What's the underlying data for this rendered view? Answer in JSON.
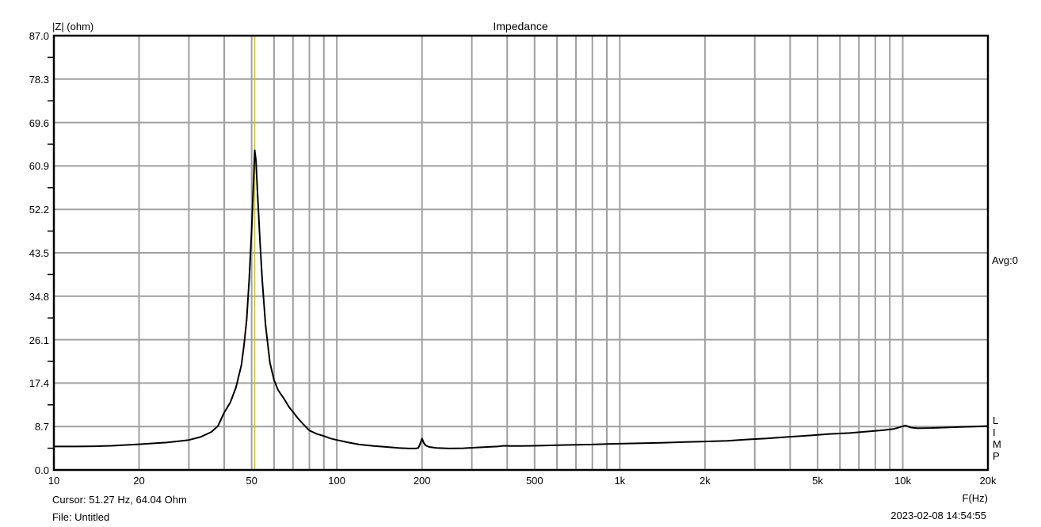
{
  "title": "Impedance",
  "y_axis_label": "|Z| (ohm)",
  "x_axis_label": "F(Hz)",
  "avg_label": "Avg:0",
  "program_letters": [
    "L",
    "I",
    "M",
    "P"
  ],
  "status": {
    "cursor": "Cursor: 51.27 Hz, 64.04 Ohm",
    "file": "File: Untitled",
    "datetime": "2023-02-08 14:54:55"
  },
  "colors": {
    "background": "#ffffff",
    "grid": "#a0a0a0",
    "axis": "#000000",
    "curve": "#000000",
    "cursor_line": "#c8c800",
    "text": "#000000"
  },
  "chart_data": {
    "type": "line",
    "title": "Impedance",
    "xlabel": "F(Hz)",
    "ylabel": "|Z| (ohm)",
    "x_scale": "log",
    "xlim": [
      10,
      20000
    ],
    "ylim": [
      0,
      87
    ],
    "grid": true,
    "legend_position": "none",
    "y_ticks": [
      0.0,
      8.7,
      17.4,
      26.1,
      34.8,
      43.5,
      52.2,
      60.9,
      69.6,
      78.3,
      87.0
    ],
    "y_tick_labels": [
      "0.0",
      "8.7",
      "17.4",
      "26.1",
      "34.8",
      "43.5",
      "52.2",
      "60.9",
      "69.6",
      "78.3",
      "87.0"
    ],
    "y_minor_ticks": [
      4.35,
      13.05,
      21.75,
      30.45,
      39.15,
      47.85,
      56.55,
      65.25,
      73.95,
      82.65
    ],
    "x_ticks": [
      10,
      20,
      50,
      100,
      200,
      500,
      1000,
      2000,
      5000,
      10000,
      20000
    ],
    "x_tick_labels": [
      "10",
      "20",
      "50",
      "100",
      "200",
      "500",
      "1k",
      "2k",
      "5k",
      "10k",
      "20k"
    ],
    "x_gridlines": [
      20,
      30,
      40,
      50,
      60,
      70,
      80,
      90,
      100,
      200,
      300,
      400,
      500,
      600,
      700,
      800,
      900,
      1000,
      2000,
      3000,
      4000,
      5000,
      6000,
      7000,
      8000,
      9000,
      10000
    ],
    "cursor": {
      "freq_hz": 51.27,
      "ohm": 64.04
    },
    "series": [
      {
        "name": "impedance-magnitude",
        "points": [
          [
            10,
            4.7
          ],
          [
            12,
            4.7
          ],
          [
            14,
            4.75
          ],
          [
            16,
            4.85
          ],
          [
            18,
            5.0
          ],
          [
            20,
            5.15
          ],
          [
            22,
            5.3
          ],
          [
            25,
            5.5
          ],
          [
            28,
            5.8
          ],
          [
            30,
            6.0
          ],
          [
            33,
            6.6
          ],
          [
            36,
            7.6
          ],
          [
            38,
            8.8
          ],
          [
            40,
            11.5
          ],
          [
            42,
            13.5
          ],
          [
            44,
            16.5
          ],
          [
            46,
            21.0
          ],
          [
            47,
            25.0
          ],
          [
            48,
            30.0
          ],
          [
            49,
            38.0
          ],
          [
            50,
            48.0
          ],
          [
            50.8,
            58.0
          ],
          [
            51.27,
            64.04
          ],
          [
            51.8,
            62.0
          ],
          [
            52.5,
            55.0
          ],
          [
            53.5,
            46.0
          ],
          [
            54.5,
            38.0
          ],
          [
            56,
            29.0
          ],
          [
            58,
            21.5
          ],
          [
            60,
            18.0
          ],
          [
            62,
            16.0
          ],
          [
            65,
            14.3
          ],
          [
            68,
            12.5
          ],
          [
            70,
            11.6
          ],
          [
            73,
            10.3
          ],
          [
            76,
            9.2
          ],
          [
            80,
            7.9
          ],
          [
            85,
            7.2
          ],
          [
            90,
            6.8
          ],
          [
            95,
            6.3
          ],
          [
            100,
            6.0
          ],
          [
            110,
            5.5
          ],
          [
            120,
            5.1
          ],
          [
            135,
            4.8
          ],
          [
            150,
            4.6
          ],
          [
            165,
            4.4
          ],
          [
            180,
            4.3
          ],
          [
            190,
            4.3
          ],
          [
            194,
            4.4
          ],
          [
            197,
            5.2
          ],
          [
            200,
            6.3
          ],
          [
            203,
            5.4
          ],
          [
            206,
            4.9
          ],
          [
            212,
            4.6
          ],
          [
            225,
            4.4
          ],
          [
            250,
            4.3
          ],
          [
            280,
            4.35
          ],
          [
            310,
            4.5
          ],
          [
            340,
            4.6
          ],
          [
            370,
            4.7
          ],
          [
            390,
            4.85
          ],
          [
            410,
            4.8
          ],
          [
            450,
            4.8
          ],
          [
            500,
            4.85
          ],
          [
            550,
            4.9
          ],
          [
            600,
            4.95
          ],
          [
            700,
            5.05
          ],
          [
            800,
            5.1
          ],
          [
            900,
            5.2
          ],
          [
            1000,
            5.25
          ],
          [
            1200,
            5.35
          ],
          [
            1400,
            5.45
          ],
          [
            1700,
            5.6
          ],
          [
            2000,
            5.7
          ],
          [
            2400,
            5.85
          ],
          [
            2800,
            6.1
          ],
          [
            3300,
            6.3
          ],
          [
            4000,
            6.65
          ],
          [
            4700,
            6.9
          ],
          [
            5500,
            7.2
          ],
          [
            6500,
            7.4
          ],
          [
            7500,
            7.7
          ],
          [
            8500,
            7.95
          ],
          [
            9300,
            8.2
          ],
          [
            9800,
            8.6
          ],
          [
            10200,
            8.9
          ],
          [
            10700,
            8.5
          ],
          [
            11300,
            8.35
          ],
          [
            12500,
            8.4
          ],
          [
            14000,
            8.5
          ],
          [
            16000,
            8.6
          ],
          [
            18000,
            8.7
          ],
          [
            20000,
            8.8
          ]
        ]
      }
    ]
  }
}
